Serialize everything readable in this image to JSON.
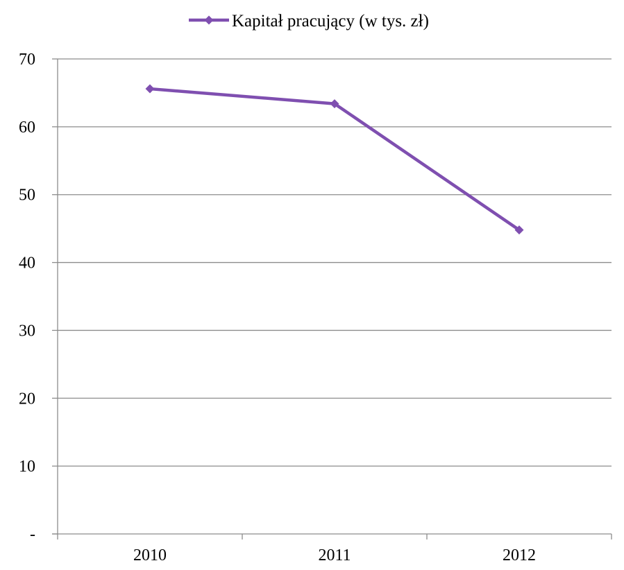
{
  "chart_data": {
    "type": "line",
    "title": "",
    "xlabel": "",
    "ylabel": "",
    "categories": [
      "2010",
      "2011",
      "2012"
    ],
    "series": [
      {
        "name": "Kapitał pracujący (w tys. zł)",
        "values": [
          65.6,
          63.4,
          44.8
        ],
        "color": "#7f4fb0",
        "marker": "diamond"
      }
    ],
    "ylim": [
      0,
      70
    ],
    "y_ticks": [
      0,
      10,
      20,
      30,
      40,
      50,
      60,
      70
    ],
    "y_tick_labels": [
      "-",
      "10",
      "20",
      "30",
      "40",
      "50",
      "60",
      "70"
    ],
    "grid": true,
    "legend_position": "top-center"
  }
}
